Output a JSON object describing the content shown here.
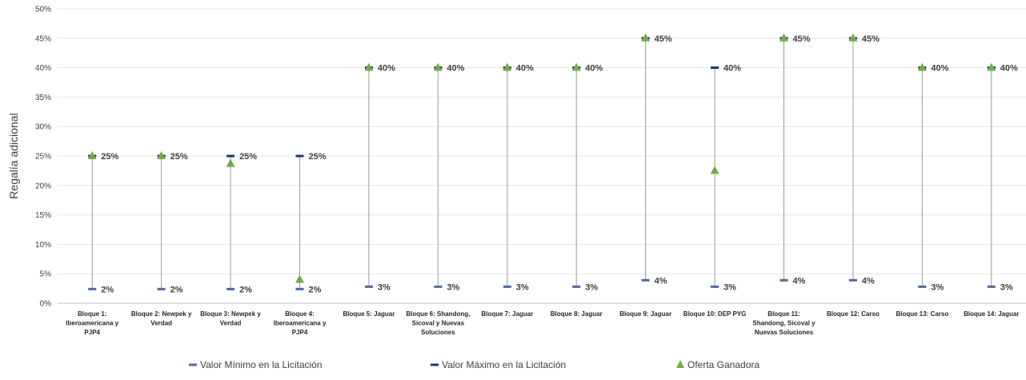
{
  "chart_data": {
    "type": "scatter",
    "title": "",
    "ylabel": "Regalía adicional",
    "ylim": [
      0,
      50
    ],
    "y_ticks": [
      "0%",
      "5%",
      "10%",
      "15%",
      "20%",
      "25%",
      "30%",
      "35%",
      "40%",
      "45%",
      "50%"
    ],
    "grid": true,
    "legend_position": "bottom",
    "colors": {
      "min": "#4f6a9a",
      "max": "#1f3864",
      "winner": "#70ad47",
      "range_line": "#9a9a9a",
      "grid": "#e6e6e6"
    },
    "categories": [
      [
        "Bloque 1:",
        "Iberoamericana y",
        "PJP4"
      ],
      [
        "Bloque 2: Newpek y",
        "Verdad"
      ],
      [
        "Bloque 3: Newpek y",
        "Verdad"
      ],
      [
        "Bloque 4:",
        "Iberoamericana y",
        "PJP4"
      ],
      [
        "Bloque 5: Jaguar"
      ],
      [
        "Bloque 6: Shandong,",
        "Sicoval y Nuevas",
        "Soluciones"
      ],
      [
        "Bloque 7: Jaguar"
      ],
      [
        "Bloque 8: Jaguar"
      ],
      [
        "Bloque 9: Jaguar"
      ],
      [
        "Bloque 10: DEP PYG"
      ],
      [
        "Bloque 11:",
        "Shandong, Sicoval y",
        "Nuevas Soluciones"
      ],
      [
        "Bloque 12: Carso"
      ],
      [
        "Bloque 13: Carso"
      ],
      [
        "Bloque 14: Jaguar"
      ]
    ],
    "series": [
      {
        "name": "Valor Mínimo en la Licitación",
        "values": [
          2.4,
          2.4,
          2.4,
          2.4,
          2.8,
          2.8,
          2.8,
          2.8,
          3.9,
          2.8,
          3.9,
          3.9,
          2.8,
          2.8
        ],
        "labels": [
          "2%",
          "2%",
          "2%",
          "2%",
          "3%",
          "3%",
          "3%",
          "3%",
          "4%",
          "3%",
          "4%",
          "4%",
          "3%",
          "3%"
        ]
      },
      {
        "name": "Valor Máximo en la Licitación",
        "values": [
          25,
          25,
          25,
          25,
          40,
          40,
          40,
          40,
          45,
          40,
          45,
          45,
          40,
          40
        ],
        "labels": [
          "25%",
          "25%",
          "25%",
          "25%",
          "40%",
          "40%",
          "40%",
          "40%",
          "45%",
          "40%",
          "45%",
          "45%",
          "40%",
          "40%"
        ]
      },
      {
        "name": "Oferta Ganadora",
        "values": [
          25,
          25,
          23.7,
          4.0,
          40,
          40,
          40,
          40,
          45,
          22.5,
          45,
          45,
          40,
          40
        ]
      }
    ]
  }
}
